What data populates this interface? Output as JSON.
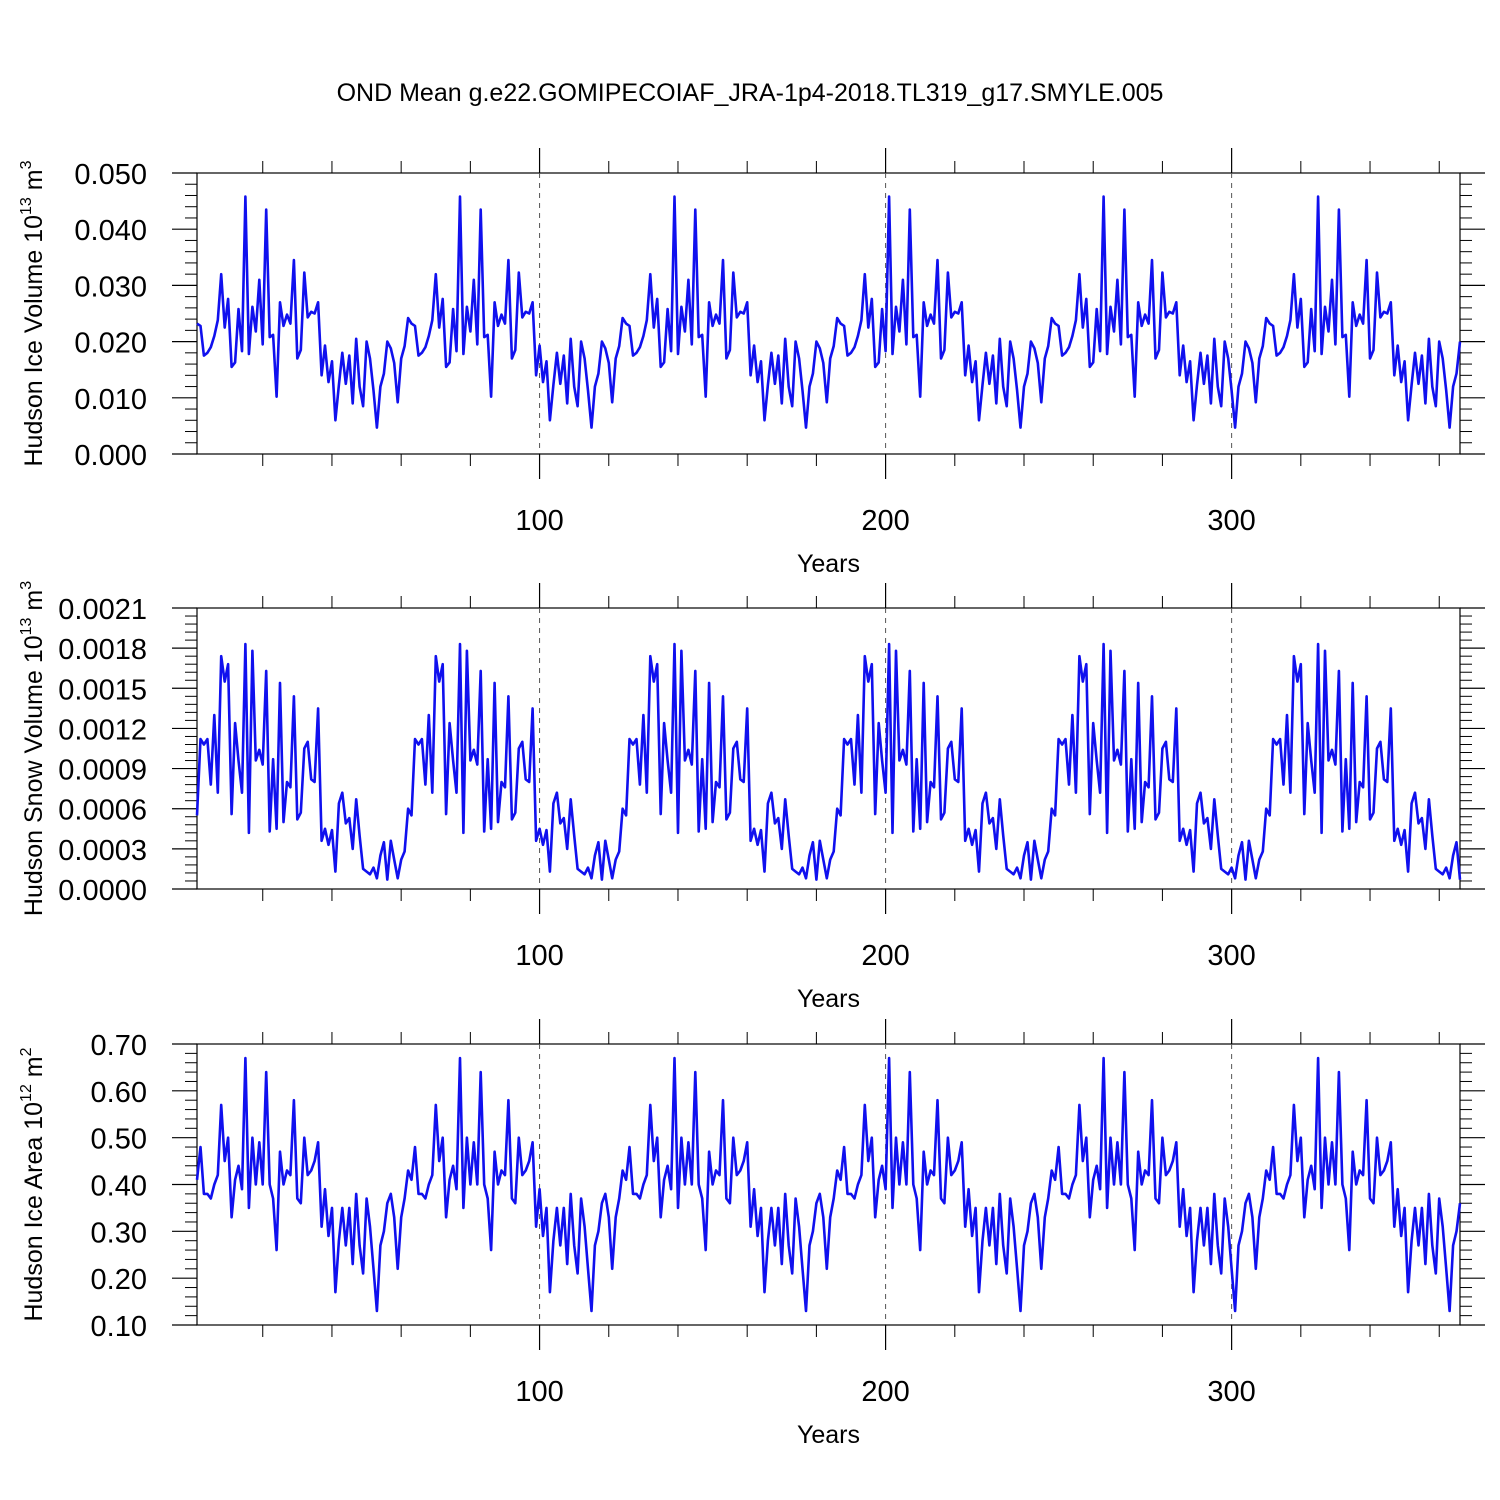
{
  "title": "OND Mean g.e22.GOMIPECOIAF_JRA-1p4-2018.TL319_g17.SMYLE.005",
  "line_color": "#1010ee",
  "chart_data": [
    {
      "type": "line",
      "ylabel_main": "Hudson Ice Volume 10",
      "ylabel_exp": "13",
      "ylabel_unit": " m",
      "ylabel_unit_exp": "3",
      "xlabel": "Years",
      "xlim": [
        1,
        366
      ],
      "ylim": [
        0.0,
        0.05
      ],
      "yticks": [
        "0.000",
        "0.010",
        "0.020",
        "0.030",
        "0.040",
        "0.050"
      ],
      "xticks": [
        "100",
        "200",
        "300"
      ],
      "grid": "dashed vertical at 100, 200, 300",
      "base_period": 62,
      "base": [
        0.0232,
        0.0228,
        0.0175,
        0.018,
        0.019,
        0.021,
        0.0238,
        0.032,
        0.0225,
        0.0276,
        0.0155,
        0.0163,
        0.0258,
        0.0183,
        0.0458,
        0.0178,
        0.0262,
        0.0218,
        0.031,
        0.0195,
        0.0435,
        0.0208,
        0.0212,
        0.0102,
        0.027,
        0.0228,
        0.0248,
        0.0232,
        0.0345,
        0.017,
        0.0185,
        0.0323,
        0.0243,
        0.0253,
        0.025,
        0.027,
        0.014,
        0.0193,
        0.0128,
        0.0165,
        0.006,
        0.0123,
        0.018,
        0.0125,
        0.0175,
        0.009,
        0.0205,
        0.012,
        0.0085,
        0.02,
        0.017,
        0.0113,
        0.0047,
        0.012,
        0.0143,
        0.02,
        0.0188,
        0.0162,
        0.0092,
        0.017,
        0.0192,
        0.0242
      ],
      "values_rule": "values[i] = base[i mod base_period], x = i + 1"
    },
    {
      "type": "line",
      "ylabel_main": "Hudson Snow Volume 10",
      "ylabel_exp": "13",
      "ylabel_unit": " m",
      "ylabel_unit_exp": "3",
      "xlabel": "Years",
      "xlim": [
        1,
        366
      ],
      "ylim": [
        0.0,
        0.0021
      ],
      "yticks": [
        "0.0000",
        "0.0003",
        "0.0006",
        "0.0009",
        "0.0012",
        "0.0015",
        "0.0018",
        "0.0021"
      ],
      "xticks": [
        "100",
        "200",
        "300"
      ],
      "grid": "dashed vertical at 100, 200, 300",
      "base_period": 62,
      "base": [
        0.00055,
        0.00112,
        0.00108,
        0.00112,
        0.00078,
        0.0013,
        0.00072,
        0.00174,
        0.00155,
        0.00168,
        0.00056,
        0.00124,
        0.00096,
        0.00072,
        0.00183,
        0.00042,
        0.00178,
        0.00096,
        0.00104,
        0.00093,
        0.00163,
        0.00043,
        0.00097,
        0.00045,
        0.00154,
        0.0005,
        0.0008,
        0.00076,
        0.00144,
        0.00052,
        0.00057,
        0.00105,
        0.0011,
        0.00082,
        0.0008,
        0.00135,
        0.00036,
        0.00045,
        0.00033,
        0.00044,
        0.00013,
        0.00064,
        0.00072,
        0.00049,
        0.00053,
        0.0003,
        0.00067,
        0.0004,
        0.00015,
        0.00013,
        0.00011,
        0.00016,
        8e-05,
        0.00025,
        0.00035,
        7e-05,
        0.00036,
        0.00022,
        8e-05,
        0.00022,
        0.00028,
        0.0006
      ],
      "values_rule": "values[i] = base[i mod base_period], x = i + 1"
    },
    {
      "type": "line",
      "ylabel_main": "Hudson Ice Area 10",
      "ylabel_exp": "12",
      "ylabel_unit": " m",
      "ylabel_unit_exp": "2",
      "xlabel": "Years",
      "xlim": [
        1,
        366
      ],
      "ylim": [
        0.1,
        0.7
      ],
      "yticks": [
        "0.10",
        "0.20",
        "0.30",
        "0.40",
        "0.50",
        "0.60",
        "0.70"
      ],
      "xticks": [
        "100",
        "200",
        "300"
      ],
      "grid": "dashed vertical at 100, 200, 300",
      "base_period": 62,
      "base": [
        0.41,
        0.48,
        0.38,
        0.38,
        0.37,
        0.4,
        0.42,
        0.57,
        0.45,
        0.5,
        0.33,
        0.41,
        0.44,
        0.39,
        0.67,
        0.35,
        0.5,
        0.4,
        0.49,
        0.4,
        0.64,
        0.4,
        0.37,
        0.26,
        0.47,
        0.4,
        0.43,
        0.42,
        0.58,
        0.37,
        0.36,
        0.5,
        0.42,
        0.43,
        0.45,
        0.49,
        0.31,
        0.39,
        0.29,
        0.35,
        0.17,
        0.28,
        0.35,
        0.27,
        0.35,
        0.23,
        0.38,
        0.27,
        0.21,
        0.37,
        0.31,
        0.22,
        0.13,
        0.27,
        0.3,
        0.36,
        0.38,
        0.33,
        0.22,
        0.33,
        0.37,
        0.43
      ],
      "values_rule": "values[i] = base[i mod base_period], x = i + 1"
    }
  ]
}
